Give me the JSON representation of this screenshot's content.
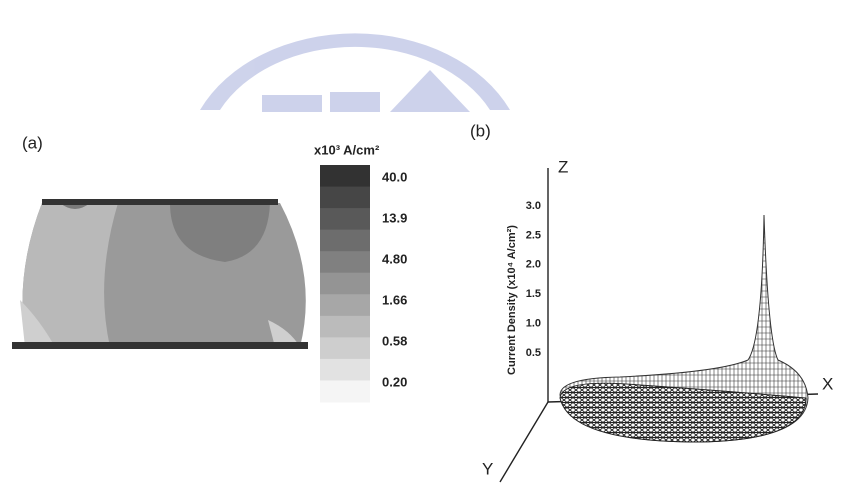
{
  "panel_a": {
    "label": "(a)",
    "colorbar": {
      "unit_label": "x10³ A/cm²",
      "levels": [
        "40.0",
        "13.9",
        "4.80",
        "1.66",
        "0.58",
        "0.20"
      ]
    }
  },
  "panel_b": {
    "label": "(b)",
    "z_title": "Current Density (x10⁴ A/cm²)",
    "z_ticks": [
      "3.0",
      "2.5",
      "2.0",
      "1.5",
      "1.0",
      "0.5"
    ],
    "axis_labels": {
      "z": "Z",
      "x": "X",
      "y": "Y"
    }
  }
}
